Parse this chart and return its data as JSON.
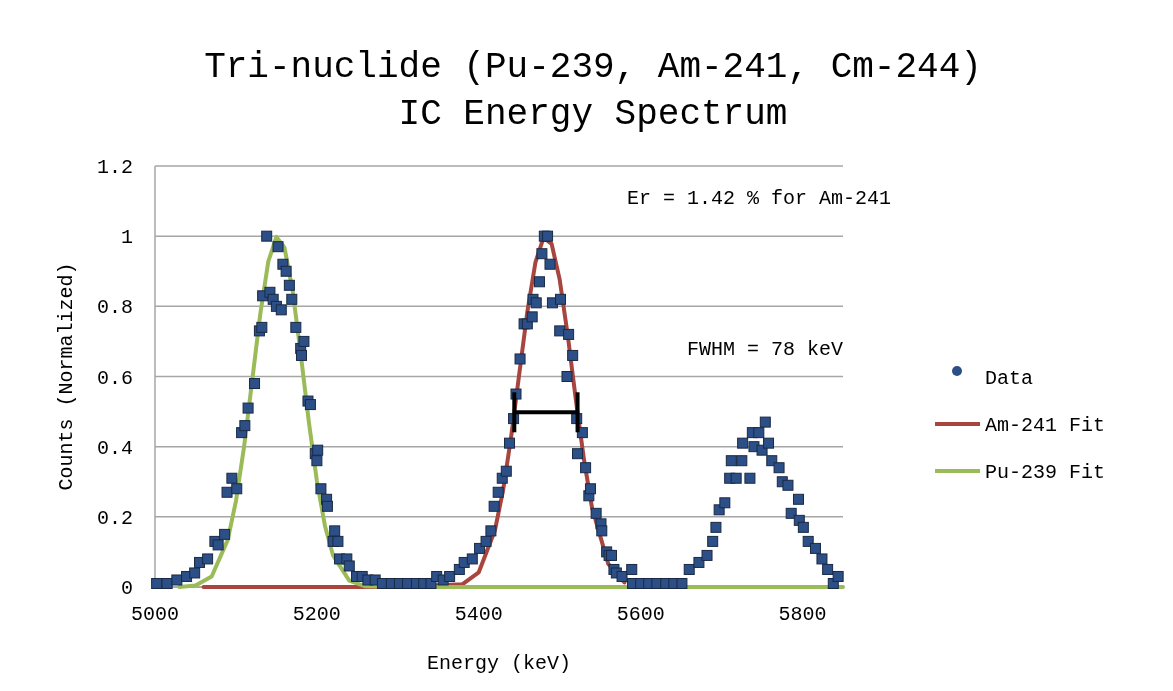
{
  "chart_data": {
    "type": "scatter",
    "title": "Tri-nuclide (Pu-239, Am-241, Cm-244)\nIC Energy Spectrum",
    "xlabel": "Energy (keV)",
    "ylabel": "Counts (Normalized)",
    "xlim": [
      5000,
      5850
    ],
    "xticks": [
      5000,
      5200,
      5400,
      5600,
      5800
    ],
    "ylim": [
      0,
      1.2
    ],
    "yticks": [
      0,
      0.2,
      0.4,
      0.6,
      0.8,
      1,
      1.2
    ],
    "grid": "y",
    "legend": "right",
    "annotations": [
      "Er = 1.42 % for Am-241",
      "FWHM = 78 keV"
    ],
    "series": [
      {
        "name": "Data",
        "marker": "square",
        "color": "#2b4f86",
        "x": [
          5002,
          5015,
          5027,
          5039,
          5049,
          5055,
          5065,
          5074,
          5078,
          5086,
          5089,
          5095,
          5101,
          5107,
          5111,
          5115,
          5123,
          5129,
          5132,
          5133,
          5138,
          5142,
          5146,
          5150,
          5152,
          5156,
          5158,
          5162,
          5166,
          5169,
          5174,
          5180,
          5181,
          5184,
          5189,
          5192,
          5198,
          5200,
          5201,
          5205,
          5212,
          5213,
          5220,
          5222,
          5226,
          5228,
          5237,
          5240,
          5249,
          5256,
          5263,
          5272,
          5281,
          5292,
          5302,
          5312,
          5323,
          5332,
          5341,
          5348,
          5356,
          5364,
          5376,
          5382,
          5392,
          5401,
          5409,
          5415,
          5419,
          5424,
          5429,
          5434,
          5438,
          5443,
          5446,
          5451,
          5456,
          5460,
          5466,
          5467,
          5471,
          5475,
          5478,
          5481,
          5485,
          5488,
          5491,
          5500,
          5501,
          5509,
          5511,
          5516,
          5521,
          5522,
          5528,
          5532,
          5536,
          5538,
          5545,
          5551,
          5552,
          5558,
          5561,
          5564,
          5567,
          5570,
          5577,
          5589,
          5590,
          5600,
          5610,
          5620,
          5631,
          5641,
          5651,
          5660,
          5672,
          5682,
          5689,
          5693,
          5697,
          5704,
          5710,
          5712,
          5718,
          5725,
          5726,
          5735,
          5738,
          5740,
          5746,
          5750,
          5754,
          5758,
          5762,
          5771,
          5775,
          5782,
          5786,
          5795,
          5796,
          5801,
          5807,
          5816,
          5824,
          5831,
          5838,
          5844
        ],
        "values": [
          0.01,
          0.01,
          0.02,
          0.03,
          0.04,
          0.07,
          0.08,
          0.13,
          0.12,
          0.15,
          0.27,
          0.31,
          0.28,
          0.44,
          0.46,
          0.51,
          0.58,
          0.73,
          0.74,
          0.83,
          1.0,
          0.84,
          0.82,
          0.8,
          0.97,
          0.79,
          0.92,
          0.9,
          0.86,
          0.82,
          0.74,
          0.68,
          0.66,
          0.7,
          0.53,
          0.52,
          0.38,
          0.36,
          0.39,
          0.28,
          0.25,
          0.23,
          0.13,
          0.16,
          0.13,
          0.08,
          0.08,
          0.06,
          0.03,
          0.03,
          0.02,
          0.02,
          0.01,
          0.01,
          0.01,
          0.01,
          0.01,
          0.01,
          0.01,
          0.03,
          0.02,
          0.03,
          0.05,
          0.07,
          0.08,
          0.11,
          0.13,
          0.16,
          0.23,
          0.27,
          0.31,
          0.33,
          0.41,
          0.48,
          0.55,
          0.65,
          0.75,
          0.75,
          0.77,
          0.82,
          0.81,
          0.87,
          0.95,
          1.0,
          1.0,
          0.92,
          0.81,
          0.73,
          0.82,
          0.6,
          0.72,
          0.66,
          0.48,
          0.38,
          0.44,
          0.34,
          0.26,
          0.28,
          0.21,
          0.18,
          0.16,
          0.1,
          0.09,
          0.09,
          0.05,
          0.04,
          0.03,
          0.05,
          0.01,
          0.01,
          0.01,
          0.01,
          0.01,
          0.01,
          0.01,
          0.05,
          0.07,
          0.09,
          0.13,
          0.17,
          0.22,
          0.24,
          0.31,
          0.36,
          0.31,
          0.36,
          0.41,
          0.31,
          0.44,
          0.4,
          0.44,
          0.39,
          0.47,
          0.41,
          0.36,
          0.34,
          0.3,
          0.29,
          0.21,
          0.25,
          0.19,
          0.17,
          0.13,
          0.11,
          0.08,
          0.05,
          0.01,
          0.03
        ]
      },
      {
        "name": "Am-241 Fit",
        "type": "line",
        "color": "#a9453f",
        "x": [
          5060,
          5250,
          5300,
          5380,
          5400,
          5420,
          5430,
          5440,
          5450,
          5460,
          5470,
          5480,
          5490,
          5500,
          5510,
          5520,
          5530,
          5540,
          5560,
          5580
        ],
        "values": [
          0,
          0,
          0,
          0.008,
          0.042,
          0.162,
          0.275,
          0.428,
          0.607,
          0.784,
          0.925,
          0.996,
          0.978,
          0.876,
          0.716,
          0.533,
          0.363,
          0.225,
          0.066,
          0.013
        ]
      },
      {
        "name": "Pu-239 Fit",
        "type": "line",
        "color": "#9bbb59",
        "x": [
          5030,
          5050,
          5070,
          5090,
          5100,
          5110,
          5120,
          5130,
          5140,
          5150,
          5160,
          5170,
          5180,
          5190,
          5200,
          5210,
          5220,
          5240,
          5260,
          5300,
          5850
        ],
        "values": [
          0,
          0.004,
          0.03,
          0.135,
          0.245,
          0.399,
          0.587,
          0.777,
          0.928,
          0.998,
          0.967,
          0.845,
          0.665,
          0.472,
          0.302,
          0.174,
          0.09,
          0.018,
          0.002,
          0,
          0
        ]
      }
    ]
  }
}
